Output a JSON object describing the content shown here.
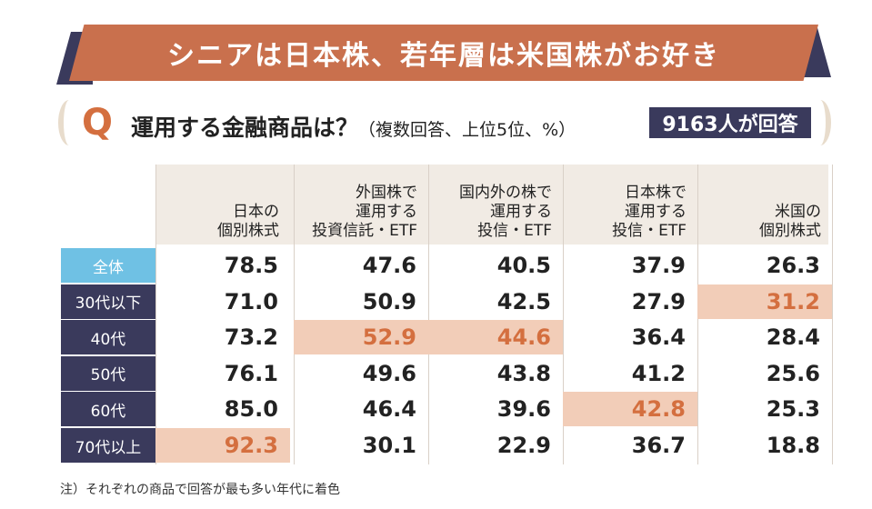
{
  "title": "シニアは日本株、若年層は米国株がお好き",
  "question": {
    "letter": "Q",
    "text": "運用する金融商品は？",
    "note": "（複数回答、上位5位、%）",
    "badge": "9163人が回答"
  },
  "colors": {
    "banner": "#c9704d",
    "dark": "#3a3a5c",
    "row_total": "#6fc1e4",
    "highlight_bg": "#f2cdb8",
    "highlight_text": "#d46f3f",
    "header_bg": "#f1ebe4"
  },
  "chart_data": {
    "type": "table",
    "title": "運用する金融商品は？（複数回答、上位5位、%）",
    "columns": [
      {
        "line1": "日本の",
        "line2": "個別株式",
        "line3": ""
      },
      {
        "line1": "外国株で",
        "line2": "運用する",
        "line3": "投資信託・ETF"
      },
      {
        "line1": "国内外の株で",
        "line2": "運用する",
        "line3": "投信・ETF"
      },
      {
        "line1": "日本株で",
        "line2": "運用する",
        "line3": "投信・ETF"
      },
      {
        "line1": "米国の",
        "line2": "個別株式",
        "line3": ""
      }
    ],
    "rows": [
      {
        "label": "全体",
        "values": [
          "78.5",
          "47.6",
          "40.5",
          "37.9",
          "26.3"
        ],
        "highlight": -1
      },
      {
        "label": "30代以下",
        "values": [
          "71.0",
          "50.9",
          "42.5",
          "27.9",
          "31.2"
        ],
        "highlight": 4
      },
      {
        "label": "40代",
        "values": [
          "73.2",
          "52.9",
          "44.6",
          "36.4",
          "28.4"
        ],
        "highlight": [
          1,
          2
        ]
      },
      {
        "label": "50代",
        "values": [
          "76.1",
          "49.6",
          "43.8",
          "41.2",
          "25.6"
        ],
        "highlight": -1
      },
      {
        "label": "60代",
        "values": [
          "85.0",
          "46.4",
          "39.6",
          "42.8",
          "25.3"
        ],
        "highlight": 3
      },
      {
        "label": "70代以上",
        "values": [
          "92.3",
          "30.1",
          "22.9",
          "36.7",
          "18.8"
        ],
        "highlight": 0
      }
    ]
  },
  "footnote": "注）それぞれの商品で回答が最も多い年代に着色"
}
